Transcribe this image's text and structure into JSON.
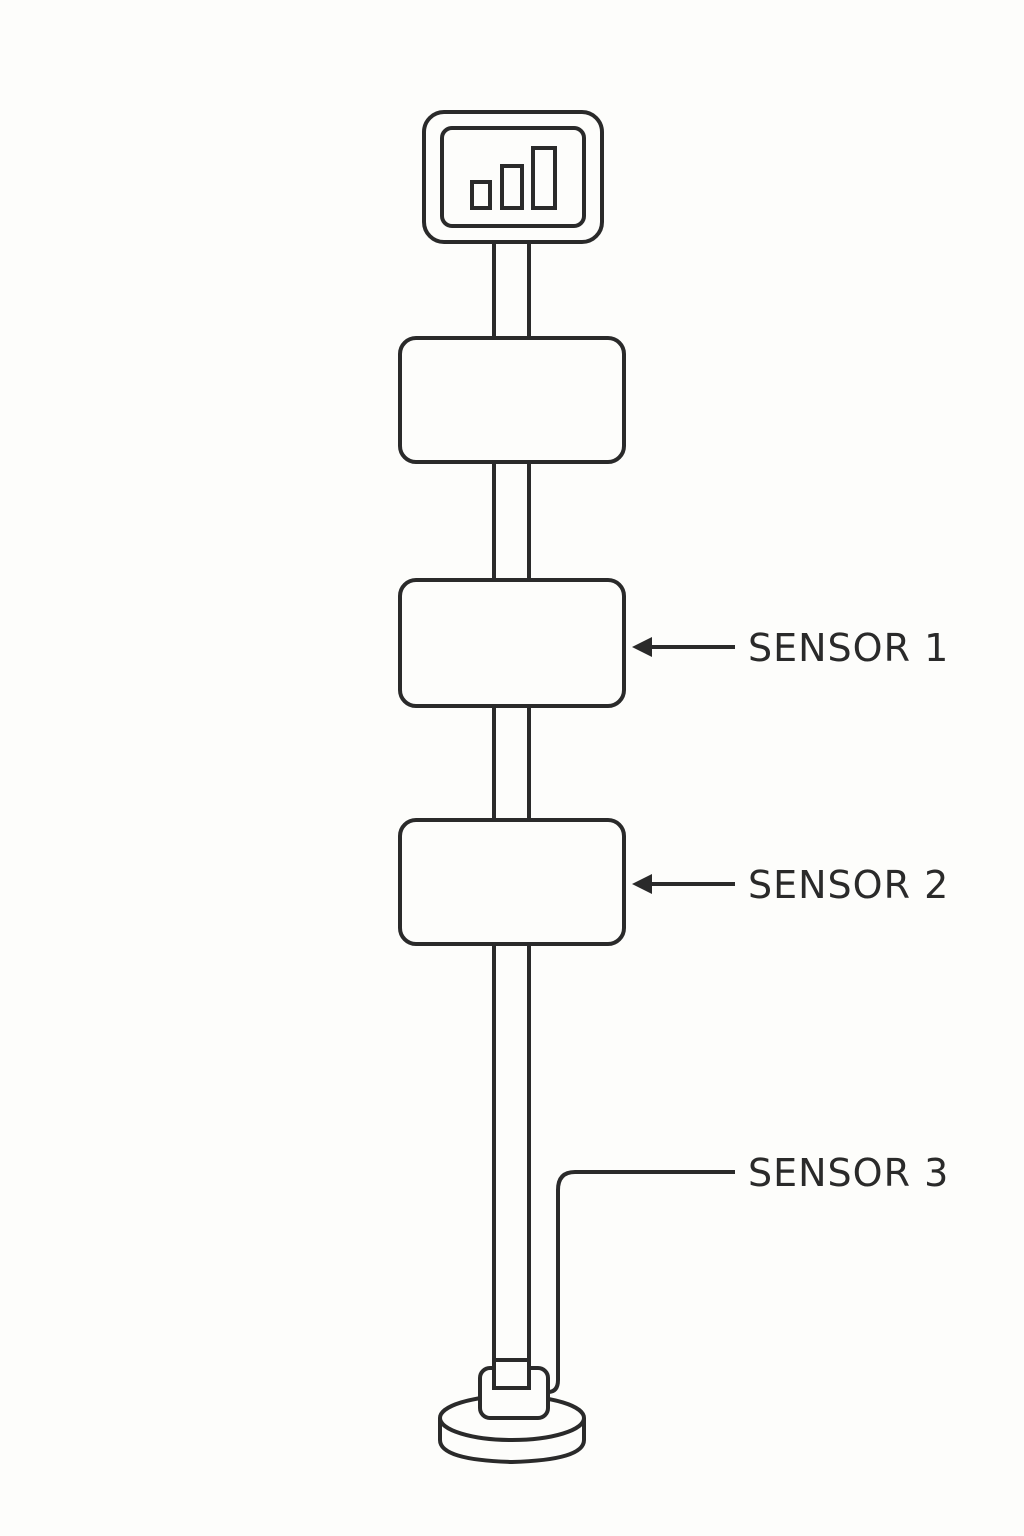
{
  "diagram": {
    "labels": {
      "sensor_1": "SENSOR 1",
      "sensor_2": "SENSOR 2",
      "sensor_3": "SENSOR 3"
    },
    "icons": {
      "display": "signal-bars-icon"
    },
    "colors": {
      "background": "#fdfdfb",
      "stroke": "#2a2a2a",
      "fill": "#fdfdfb"
    }
  }
}
